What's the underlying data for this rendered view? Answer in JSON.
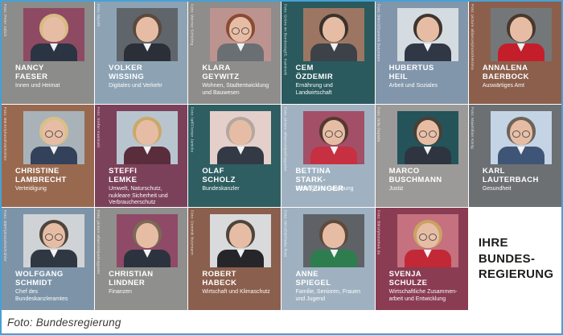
{
  "page": {
    "caption": "Foto: Bundesregierung",
    "border_color": "#47a0d6",
    "background": "#ffffff"
  },
  "title_card": {
    "lines": [
      "IHRE",
      "BUNDES-",
      "REGIERUNG"
    ],
    "text_color": "#1d1d1b",
    "background": "#ffffff"
  },
  "cards": [
    {
      "name_lines": [
        "NANCY",
        "FAESER"
      ],
      "role": "Innen und Heimat",
      "credit": "Foto: Peter Jülich",
      "bg": "#8c8c8a",
      "photo_bg": "#8e4a63",
      "hair": "#d9ba82",
      "outfit": "#2b3442",
      "glasses": false
    },
    {
      "name_lines": [
        "VOLKER",
        "WISSING"
      ],
      "role": "Digitales und Verkehr",
      "credit": "Foto: Myrzik",
      "bg": "#8da3b4",
      "photo_bg": "#5f656a",
      "hair": "#5a4a3c",
      "outfit": "#2a2f38",
      "glasses": false
    },
    {
      "name_lines": [
        "KLARA",
        "GEYWITZ"
      ],
      "role": "Wohnen, Stadtentwicklung und Bauwesen",
      "credit": "Foto: Werner Schüring",
      "bg": "#8e8d8b",
      "photo_bg": "#bd938f",
      "hair": "#8a4a33",
      "outfit": "#6a6f73",
      "glasses": true
    },
    {
      "name_lines": [
        "CEM",
        "ÖZDEMIR"
      ],
      "role": "Ernährung und Landwirtschaft",
      "credit": "Foto: Grüne im Bundestag/S. Kaminski",
      "bg": "#2a5a5e",
      "photo_bg": "#9c7663",
      "hair": "#3a332c",
      "outfit": "#3c4248",
      "glasses": false
    },
    {
      "name_lines": [
        "HUBERTUS",
        "HEIL"
      ],
      "role": "Arbeit und Soziales",
      "credit": "Foto: BMAS/Dominik Butzmann",
      "bg": "#8296ab",
      "photo_bg": "#d4dbe1",
      "hair": "#3e362e",
      "outfit": "#303845",
      "glasses": false
    },
    {
      "name_lines": [
        "ANNALENA",
        "BAERBOCK"
      ],
      "role": "Auswärtiges Amt",
      "credit": "Foto: picture alliance/photothek/Imo",
      "bg": "#8c5f4c",
      "photo_bg": "#74777a",
      "hair": "#4a372b",
      "outfit": "#c41e2a",
      "glasses": false
    },
    {
      "name_lines": [
        "CHRISTINE",
        "LAMBRECHT"
      ],
      "role": "Verteidigung",
      "credit": "Foto: BMJV/photothek/Köhler",
      "bg": "#99694f",
      "photo_bg": "#a9b2b8",
      "hair": "#d9c089",
      "outfit": "#33415a",
      "glasses": true
    },
    {
      "name_lines": [
        "STEFFI",
        "LEMKE"
      ],
      "role": "Umwelt, Naturschutz, nukleare Sicherheit und Verbraucherschutz",
      "credit": "Foto: Stefan Kaminski",
      "bg": "#7c415a",
      "photo_bg": "#b9c5ce",
      "hair": "#c9a96a",
      "outfit": "#5a2d3c",
      "glasses": false
    },
    {
      "name_lines": [
        "OLAF",
        "SCHOLZ"
      ],
      "role": "Bundeskanzler",
      "credit": "Foto: laif/Florian Janicke",
      "bg": "#2e5e62",
      "photo_bg": "#e4cfca",
      "hair": "#b3a79f",
      "outfit": "#333a46",
      "glasses": false
    },
    {
      "name_lines": [
        "BETTINA",
        "STARK-WATZINGER"
      ],
      "role": "Bildung und Forschung",
      "credit": "Foto: picture alliance/dpa/Kappeler",
      "bg": "#a0b2c1",
      "photo_bg": "#a34f68",
      "hair": "#55382f",
      "outfit": "#c63040",
      "glasses": true
    },
    {
      "name_lines": [
        "MARCO",
        "BUSCHMANN"
      ],
      "role": "Justiz",
      "credit": "Foto: Julia Deptala",
      "bg": "#9b9a98",
      "photo_bg": "#24535a",
      "hair": "#4a3f35",
      "outfit": "#2e3540",
      "glasses": true
    },
    {
      "name_lines": [
        "KARL",
        "LAUTERBACH"
      ],
      "role": "Gesundheit",
      "credit": "Foto: Maximilian König",
      "bg": "#6c7073",
      "photo_bg": "#c4d4e4",
      "hair": "#6d6358",
      "outfit": "#3f5577",
      "glasses": true
    },
    {
      "name_lines": [
        "WOLFGANG",
        "SCHMIDT"
      ],
      "role": "Chef des Bundeskanzleramtes",
      "credit": "Foto: BMF/photothek/Köhler",
      "bg": "#7d94a8",
      "photo_bg": "#d0d3d6",
      "hair": "#4f453c",
      "outfit": "#2f3842",
      "glasses": true
    },
    {
      "name_lines": [
        "CHRISTIAN",
        "LINDNER"
      ],
      "role": "Finanzen",
      "credit": "Foto: picture alliance/dpa/Kappeler",
      "bg": "#8f8f8d",
      "photo_bg": "#8e4a66",
      "hair": "#7a6a55",
      "outfit": "#2c333e",
      "glasses": false
    },
    {
      "name_lines": [
        "ROBERT",
        "HABECK"
      ],
      "role": "Wirtschaft und Klimaschutz",
      "credit": "Foto: Dominik Butzmann",
      "bg": "#8b5f4d",
      "photo_bg": "#d9dadc",
      "hair": "#4e443c",
      "outfit": "#26262a",
      "glasses": false
    },
    {
      "name_lines": [
        "ANNE",
        "SPIEGEL"
      ],
      "role": "Familie, Senioren, Frauen und Jugend",
      "credit": "Foto: MKUEM/Heike Rost",
      "bg": "#9fb1c0",
      "photo_bg": "#5e6266",
      "hair": "#5f4a3a",
      "outfit": "#2e7d4f",
      "glasses": false
    },
    {
      "name_lines": [
        "SVENJA",
        "SCHULZE"
      ],
      "role": "Wirtschaftliche Zusammen-arbeit und Entwicklung",
      "credit": "Foto: BMU/photothek.de",
      "bg": "#8a3c52",
      "photo_bg": "#c5717f",
      "hair": "#c9a362",
      "outfit": "#c32836",
      "glasses": true
    }
  ]
}
